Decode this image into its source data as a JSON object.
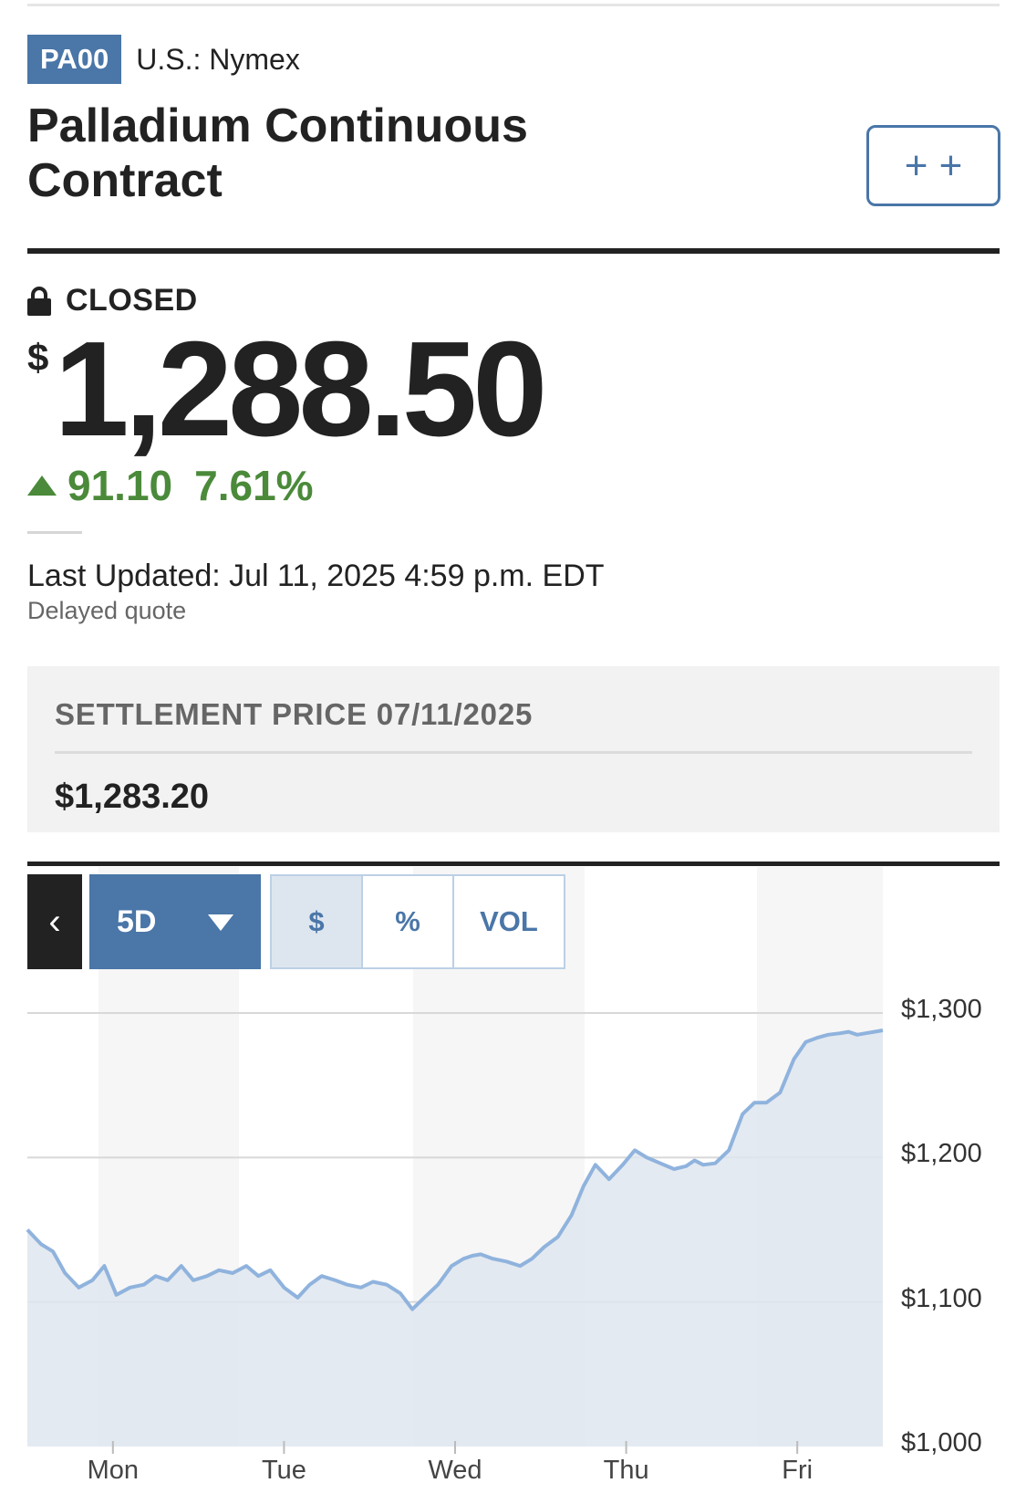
{
  "header": {
    "ticker": "PA00",
    "exchange": "U.S.: Nymex",
    "title": "Palladium Continuous Contract",
    "watch_label": "+ +"
  },
  "quote": {
    "status": "CLOSED",
    "currency_symbol": "$",
    "price": "1,288.50",
    "change": "91.10",
    "change_percent": "7.61%",
    "direction": "up",
    "last_updated": "Last Updated: Jul 11, 2025 4:59 p.m. EDT",
    "delayed_note": "Delayed quote"
  },
  "settlement": {
    "label": "SETTLEMENT PRICE 07/11/2025",
    "value": "$1,283.20"
  },
  "chart_controls": {
    "back_label": "‹",
    "range_label": "5D",
    "modes": [
      "$",
      "%",
      "VOL"
    ],
    "active_mode": "$"
  },
  "colors": {
    "accent": "#4a76a8",
    "positive": "#4a8a3a",
    "line": "#8fb3dd",
    "area": "#dfe6ee"
  },
  "chart_data": {
    "type": "area",
    "title": "",
    "xlabel": "",
    "ylabel": "",
    "ylim": [
      1000,
      1300
    ],
    "y_ticks": [
      "$1,300",
      "$1,200",
      "$1,100",
      "$1,000"
    ],
    "y_tick_values": [
      1300,
      1200,
      1100,
      1000
    ],
    "x_ticks": [
      "Mon",
      "Tue",
      "Wed",
      "Thu",
      "Fri"
    ],
    "x_tick_values": [
      0.5,
      1.5,
      2.5,
      3.5,
      4.5
    ],
    "grid": true,
    "series": [
      {
        "x": [
          0.0,
          0.08,
          0.15,
          0.22,
          0.3,
          0.38,
          0.45,
          0.52,
          0.6,
          0.68,
          0.75,
          0.82,
          0.9,
          0.97,
          1.05,
          1.12,
          1.2,
          1.28,
          1.35,
          1.42,
          1.5,
          1.58,
          1.65,
          1.72,
          1.8,
          1.87,
          1.95,
          2.02,
          2.1,
          2.18,
          2.25,
          2.32,
          2.4,
          2.48,
          2.55,
          2.6,
          2.65,
          2.72,
          2.8,
          2.88,
          2.95,
          3.02,
          3.1,
          3.18,
          3.25,
          3.32,
          3.4,
          3.48,
          3.55,
          3.62,
          3.7,
          3.78,
          3.85,
          3.9,
          3.95,
          4.02,
          4.1,
          4.18,
          4.25,
          4.32,
          4.4,
          4.48,
          4.55,
          4.62,
          4.68,
          4.75,
          4.8,
          4.85,
          4.9,
          4.95,
          5.0
        ],
        "y": [
          1150,
          1140,
          1135,
          1120,
          1110,
          1115,
          1125,
          1105,
          1110,
          1112,
          1118,
          1115,
          1125,
          1115,
          1118,
          1122,
          1120,
          1125,
          1118,
          1122,
          1110,
          1103,
          1112,
          1118,
          1115,
          1112,
          1110,
          1114,
          1112,
          1106,
          1095,
          1103,
          1112,
          1125,
          1130,
          1132,
          1133,
          1130,
          1128,
          1125,
          1130,
          1138,
          1145,
          1160,
          1180,
          1195,
          1185,
          1195,
          1205,
          1200,
          1196,
          1192,
          1194,
          1198,
          1195,
          1196,
          1205,
          1230,
          1238,
          1238,
          1245,
          1268,
          1280,
          1283,
          1285,
          1286,
          1287,
          1285,
          1286,
          1287,
          1288
        ]
      }
    ]
  }
}
